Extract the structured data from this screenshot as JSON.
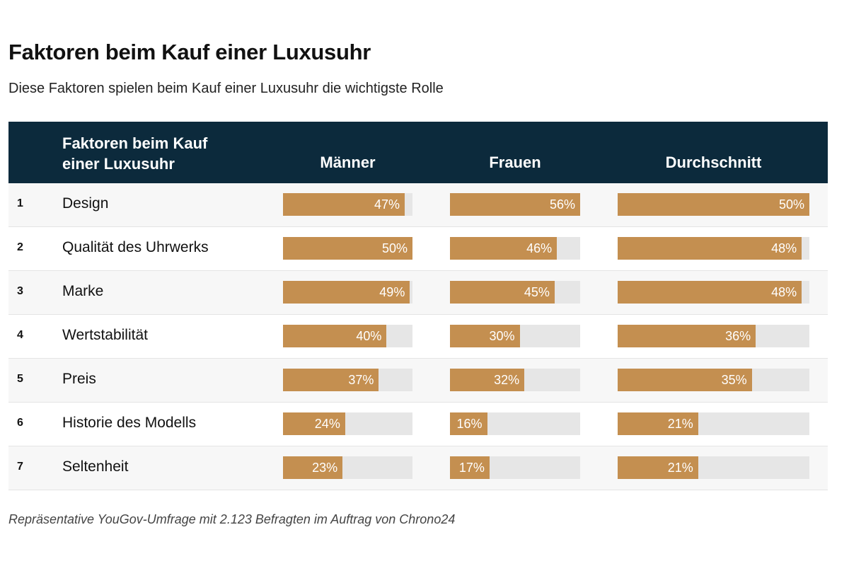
{
  "title": "Faktoren beim Kauf einer Luxusuhr",
  "subtitle": "Diese Faktoren spielen beim Kauf einer Luxusuhr die wichtigste Rolle",
  "source": "Repräsentative YouGov-Umfrage mit 2.123 Befragten im Auftrag von Chrono24",
  "colors": {
    "header": "#0c2a3c",
    "bar": "#c48f50",
    "track": "#e6e6e6"
  },
  "chart_data": {
    "type": "table",
    "columns": [
      "Faktoren beim Kauf einer Luxusuhr",
      "Männer",
      "Frauen",
      "Durchschnitt"
    ],
    "categories": [
      "Design",
      "Qualität des Uhrwerks",
      "Marke",
      "Wertstabilität",
      "Preis",
      "Historie des Modells",
      "Seltenheit"
    ],
    "series": [
      {
        "name": "Männer",
        "values": [
          47,
          50,
          49,
          40,
          37,
          24,
          23
        ]
      },
      {
        "name": "Frauen",
        "values": [
          56,
          46,
          45,
          30,
          32,
          16,
          17
        ]
      },
      {
        "name": "Durchschnitt",
        "values": [
          50,
          48,
          48,
          36,
          35,
          21,
          21
        ]
      }
    ],
    "unit": "%"
  }
}
